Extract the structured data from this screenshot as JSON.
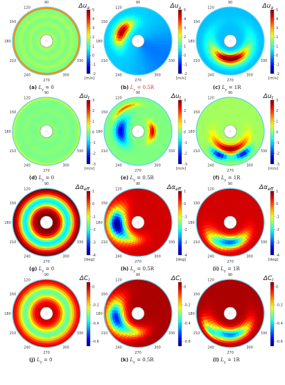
{
  "figure": {
    "rows": [
      {
        "quantity": "Δu_a",
        "unit": "[m/s]",
        "colorbar_ticks": [
          "5",
          "4",
          "3",
          "2",
          "1",
          "0",
          "-1",
          "-2"
        ],
        "colorbar_range": [
          -2,
          5
        ],
        "panels": [
          {
            "tag": "(a)",
            "label": "L",
            "sub": "y",
            "value": "= 0",
            "highlight": false
          },
          {
            "tag": "(b)",
            "label": "L",
            "sub": "y",
            "value": "= 0.5R",
            "highlight": true
          },
          {
            "tag": "(c)",
            "label": "L",
            "sub": "y",
            "value": "= 1R",
            "highlight": false
          }
        ]
      },
      {
        "quantity": "Δu_t",
        "unit": "[m/s]",
        "colorbar_ticks": [
          "3",
          "2",
          "1",
          "0",
          "-1",
          "-2",
          "-3"
        ],
        "colorbar_range": [
          -3,
          3
        ],
        "panels": [
          {
            "tag": "(d)",
            "label": "L",
            "sub": "y",
            "value": "= 0",
            "highlight": false
          },
          {
            "tag": "(e)",
            "label": "L",
            "sub": "y",
            "value": "= 0.5R",
            "highlight": false
          },
          {
            "tag": "(f)",
            "label": "L",
            "sub": "y",
            "value": "= 1R",
            "highlight": false
          }
        ]
      },
      {
        "quantity": "Δα_eff",
        "unit": "[deg]",
        "colorbar_ticks": [
          "1",
          "0",
          "-1",
          "-2",
          "-3",
          "-4"
        ],
        "colorbar_range": [
          -4,
          1
        ],
        "panels": [
          {
            "tag": "(g)",
            "label": "L",
            "sub": "y",
            "value": "= 0",
            "highlight": false
          },
          {
            "tag": "(h)",
            "label": "L",
            "sub": "y",
            "value": "= 0.5R",
            "highlight": false
          },
          {
            "tag": "(i)",
            "label": "L",
            "sub": "y",
            "value": "= 1R",
            "highlight": false
          }
        ]
      },
      {
        "quantity": "ΔC_l",
        "unit": "",
        "colorbar_ticks": [
          "0",
          "-0.2",
          "-0.4",
          "-0.6"
        ],
        "colorbar_range": [
          -0.65,
          0.05
        ],
        "panels": [
          {
            "tag": "(j)",
            "label": "L",
            "sub": "y",
            "value": "= 0",
            "highlight": false
          },
          {
            "tag": "(k)",
            "label": "L",
            "sub": "y",
            "value": "= 0.5R",
            "highlight": false
          },
          {
            "tag": "(l)",
            "label": "L",
            "sub": "y",
            "value": "= 1R",
            "highlight": false
          }
        ]
      }
    ]
  },
  "chart_data": [
    {
      "type": "heatmap",
      "panel": "(a)",
      "quantity": "Δu_a",
      "unit": "[m/s]",
      "polar": true,
      "angle_ticks": [
        "90",
        "120",
        "150",
        "180",
        "210",
        "240",
        "270",
        "300",
        "330"
      ],
      "colorbar_range": [
        -2,
        5
      ],
      "field": "nearly uniform ~1.5 m/s, outer ring ~3 m/s"
    },
    {
      "type": "heatmap",
      "panel": "(b)",
      "quantity": "Δu_a",
      "unit": "[m/s]",
      "polar": true,
      "angle_ticks": [
        "90",
        "120",
        "150",
        "180",
        "210",
        "240",
        "270",
        "300",
        "330"
      ],
      "colorbar_range": [
        -2,
        5
      ],
      "field": "high deficit (~5 m/s) sector near 120°–180°, rest ~0"
    },
    {
      "type": "heatmap",
      "panel": "(c)",
      "quantity": "Δu_a",
      "unit": "[m/s]",
      "polar": true,
      "angle_ticks": [
        "90",
        "120",
        "150",
        "180",
        "210",
        "240",
        "270",
        "300",
        "330"
      ],
      "colorbar_range": [
        -2,
        5
      ],
      "field": "high deficit (~5 m/s) band below hub ~210°–330°"
    },
    {
      "type": "heatmap",
      "panel": "(d)",
      "quantity": "Δu_t",
      "unit": "[m/s]",
      "polar": true,
      "angle_ticks": [
        "90",
        "120",
        "150",
        "180",
        "210",
        "240",
        "270",
        "300",
        "330"
      ],
      "colorbar_range": [
        -3,
        3
      ],
      "field": "nearly uniform ~0 m/s"
    },
    {
      "type": "heatmap",
      "panel": "(e)",
      "quantity": "Δu_t",
      "unit": "[m/s]",
      "polar": true,
      "angle_ticks": [
        "90",
        "120",
        "150",
        "180",
        "210",
        "240",
        "270",
        "300",
        "330"
      ],
      "colorbar_range": [
        -3,
        3
      ],
      "field": "dipole near hub: positive ~3 m/s at 0°, negative ~-3 m/s at 180°"
    },
    {
      "type": "heatmap",
      "panel": "(f)",
      "quantity": "Δu_t",
      "unit": "[m/s]",
      "polar": true,
      "angle_ticks": [
        "90",
        "120",
        "150",
        "180",
        "210",
        "240",
        "270",
        "300",
        "330"
      ],
      "colorbar_range": [
        -3,
        3
      ],
      "field": "positive ~3 m/s below hub, negative ~-3 m/s patches at 240°–300°"
    },
    {
      "type": "heatmap",
      "panel": "(g)",
      "quantity": "Δα_eff",
      "unit": "[deg]",
      "polar": true,
      "angle_ticks": [
        "90",
        "120",
        "150",
        "180",
        "210",
        "240",
        "270",
        "300",
        "330"
      ],
      "colorbar_range": [
        -4,
        1
      ],
      "field": "radial: ~1 deg near hub decreasing to ~-2 deg at mid radius, ~0 at tip"
    },
    {
      "type": "heatmap",
      "panel": "(h)",
      "quantity": "Δα_eff",
      "unit": "[deg]",
      "polar": true,
      "angle_ticks": [
        "90",
        "120",
        "150",
        "180",
        "210",
        "240",
        "270",
        "300",
        "330"
      ],
      "colorbar_range": [
        -4,
        1
      ],
      "field": "mostly ~0.5 deg, strong negative ~-4 deg around 150°–210°"
    },
    {
      "type": "heatmap",
      "panel": "(i)",
      "quantity": "Δα_eff",
      "unit": "[deg]",
      "polar": true,
      "angle_ticks": [
        "90",
        "120",
        "150",
        "180",
        "210",
        "240",
        "270",
        "300",
        "330"
      ],
      "colorbar_range": [
        -4,
        1
      ],
      "field": "mostly ~0.5 deg, negative ~-3 deg region below hub"
    },
    {
      "type": "heatmap",
      "panel": "(j)",
      "quantity": "ΔC_l",
      "unit": "",
      "polar": true,
      "angle_ticks": [
        "90",
        "120",
        "150",
        "180",
        "210",
        "240",
        "270",
        "300",
        "330"
      ],
      "colorbar_range": [
        -0.65,
        0.05
      ],
      "field": "radial: ~0 near hub, ~-0.3 mid span, ~0 at tip"
    },
    {
      "type": "heatmap",
      "panel": "(k)",
      "quantity": "ΔC_l",
      "unit": "",
      "polar": true,
      "angle_ticks": [
        "90",
        "120",
        "150",
        "180",
        "210",
        "240",
        "270",
        "300",
        "330"
      ],
      "colorbar_range": [
        -0.65,
        0.05
      ],
      "field": "mostly ~0, negative ~-0.5 around 150°–210°"
    },
    {
      "type": "heatmap",
      "panel": "(l)",
      "quantity": "ΔC_l",
      "unit": "",
      "polar": true,
      "angle_ticks": [
        "90",
        "120",
        "150",
        "180",
        "210",
        "240",
        "270",
        "300",
        "330"
      ],
      "colorbar_range": [
        -0.65,
        0.05
      ],
      "field": "mostly ~0, negative ~-0.5 band below hub"
    }
  ]
}
